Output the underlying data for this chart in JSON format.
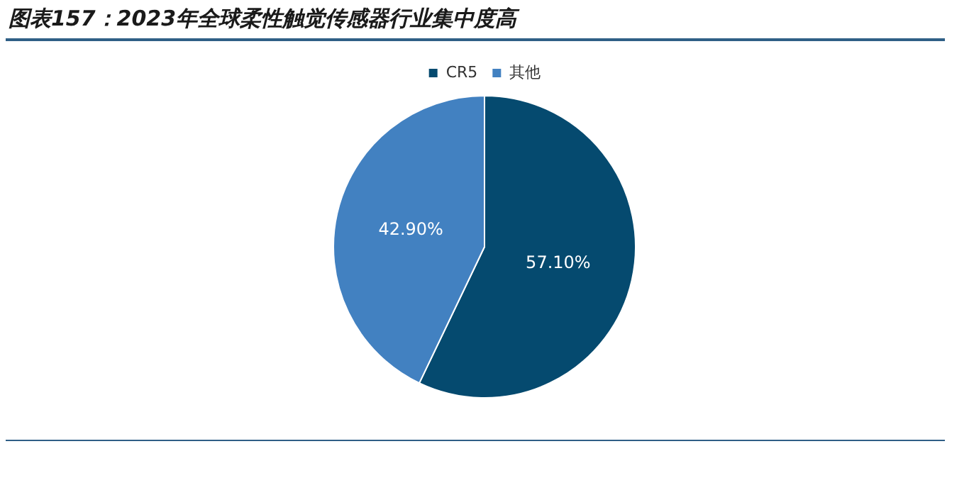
{
  "chart_data": {
    "type": "pie",
    "title": "图表157：2023年全球柔性触觉传感器行业集中度高",
    "categories": [
      "CR5",
      "其他"
    ],
    "values": [
      57.1,
      42.9
    ],
    "colors": [
      "#054a6f",
      "#4281c1"
    ],
    "value_labels": [
      "57.10%",
      "42.90%"
    ],
    "legend": "top"
  }
}
